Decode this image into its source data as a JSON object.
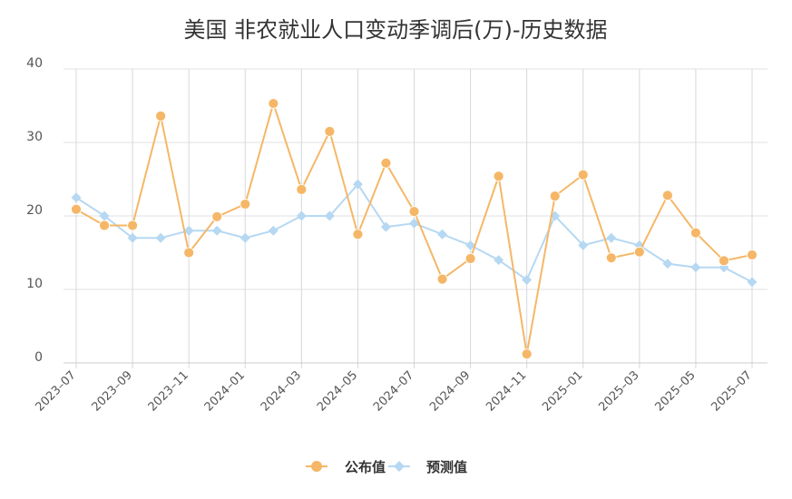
{
  "chart_data": {
    "type": "line",
    "title": "美国 非农就业人口变动季调后(万)-历史数据",
    "xlabel": "",
    "ylabel": "",
    "ylim": [
      0,
      40
    ],
    "yticks": [
      0,
      10,
      20,
      30,
      40
    ],
    "grid": true,
    "legend_position": "bottom",
    "x": [
      "2023-07",
      "2023-08",
      "2023-09",
      "2023-10",
      "2023-11",
      "2023-12",
      "2024-01",
      "2024-02",
      "2024-03",
      "2024-04",
      "2024-05",
      "2024-06",
      "2024-07",
      "2024-08",
      "2024-09",
      "2024-10",
      "2024-11",
      "2024-12",
      "2025-01",
      "2025-02",
      "2025-03",
      "2025-04",
      "2025-05",
      "2025-06",
      "2025-07"
    ],
    "xtick_labels": [
      "2023–07",
      "2023–09",
      "2023–11",
      "2024–01",
      "2024–03",
      "2024–05",
      "2024–07",
      "2024–09",
      "2024–11",
      "2025–01",
      "2025–03",
      "2025–05",
      "2025–07"
    ],
    "series": [
      {
        "name": "公布值",
        "color": "#f5b767",
        "marker": "circle",
        "values": [
          20.9,
          18.7,
          18.7,
          33.6,
          15.0,
          19.9,
          21.6,
          35.3,
          23.6,
          31.5,
          17.5,
          27.2,
          20.6,
          11.4,
          14.2,
          25.4,
          1.2,
          22.7,
          25.6,
          14.3,
          15.1,
          22.8,
          17.7,
          13.9,
          14.7
        ]
      },
      {
        "name": "预测值",
        "color": "#b6d8f2",
        "marker": "diamond",
        "values": [
          22.5,
          20.0,
          17.0,
          17.0,
          18.0,
          18.0,
          17.0,
          18.0,
          20.0,
          20.0,
          24.3,
          18.5,
          19.0,
          17.5,
          16.0,
          14.0,
          11.3,
          20.0,
          16.0,
          17.0,
          16.0,
          13.5,
          13.0,
          13.0,
          11.0
        ]
      }
    ]
  }
}
